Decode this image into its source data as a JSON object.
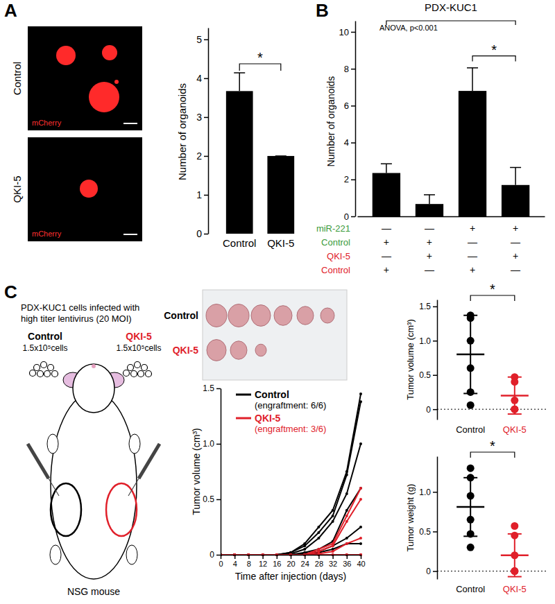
{
  "chart_data": [
    {
      "panel": "A",
      "type": "bar",
      "categories": [
        "Control",
        "QKI-5"
      ],
      "values": [
        3.67,
        2.0
      ],
      "errors": [
        0.47,
        0
      ],
      "color": "#000000",
      "ylabel": "Number of organoids",
      "ylim": [
        0,
        5.3
      ],
      "yticks": [
        0,
        1,
        2,
        3,
        4,
        5
      ],
      "significance": "*",
      "images": [
        {
          "label": "Control",
          "stain": "mCherry"
        },
        {
          "label": "QKI-5",
          "stain": "mCherry"
        }
      ]
    },
    {
      "panel": "B",
      "type": "bar",
      "title": "PDX-KUC1",
      "annotation": "ANOVA, p<0.001",
      "categories": [
        null,
        null,
        null,
        null
      ],
      "values": [
        2.35,
        0.67,
        6.8,
        1.7
      ],
      "errors": [
        0.5,
        0.5,
        1.25,
        0.95
      ],
      "color": "#000000",
      "ylabel": "Number of organoids",
      "ylim": [
        0,
        10.6
      ],
      "yticks": [
        0,
        2,
        4,
        6,
        8,
        10
      ],
      "significance": "*",
      "conditions": [
        {
          "label": "miR-221",
          "color": "#3a9a3a",
          "values": [
            "—",
            "—",
            "+",
            "+"
          ]
        },
        {
          "label": "Control",
          "color": "#3a9a3a",
          "values": [
            "+",
            "+",
            "—",
            "—"
          ]
        },
        {
          "label": "QKI-5",
          "color": "#e0202a",
          "values": [
            "—",
            "+",
            "—",
            "+"
          ]
        },
        {
          "label": "Control",
          "color": "#e0202a",
          "values": [
            "+",
            "—",
            "+",
            "—"
          ]
        }
      ]
    },
    {
      "panel": "C",
      "type": "line",
      "xlabel": "Time after injection (days)",
      "ylabel": "Tumor volume (cm³)",
      "x": [
        0,
        4,
        8,
        12,
        16,
        20,
        24,
        28,
        32,
        36,
        40
      ],
      "xlim": [
        0,
        40
      ],
      "xticks": [
        0,
        4,
        8,
        12,
        16,
        20,
        24,
        28,
        32,
        36,
        40
      ],
      "ylim": [
        0,
        1.5
      ],
      "yticks": [
        0,
        0.5,
        {
          "value": 1,
          "label": "1.0"
        },
        1.5
      ],
      "legend": "top-left",
      "series": [
        {
          "name": "Control",
          "note": "(engraftment: 6/6)",
          "color": "#000000",
          "values": [
            [
              0,
              0,
              0,
              0,
              0,
              0.02,
              0.1,
              0.25,
              0.4,
              0.75,
              1.45
            ],
            [
              0,
              0,
              0,
              0,
              0,
              0.02,
              0.08,
              0.2,
              0.35,
              0.72,
              1.38
            ],
            [
              0,
              0,
              0,
              0,
              0,
              0.01,
              0.05,
              0.15,
              0.3,
              0.55,
              1.0
            ],
            [
              0,
              0,
              0,
              0,
              0,
              0,
              0.02,
              0.05,
              0.12,
              0.4,
              0.6
            ],
            [
              0,
              0,
              0,
              0,
              0,
              0,
              0.01,
              0.03,
              0.08,
              0.15,
              0.25
            ],
            [
              0,
              0,
              0,
              0,
              0,
              0,
              0,
              0.02,
              0.05,
              0.1,
              0.1
            ]
          ]
        },
        {
          "name": "QKI-5",
          "note": "(engraftment: 3/6)",
          "color": "#e0202a",
          "values": [
            [
              0,
              0,
              0,
              0,
              0,
              0,
              0,
              0.05,
              0.1,
              0.35,
              0.6
            ],
            [
              0,
              0,
              0,
              0,
              0,
              0,
              0,
              0.03,
              0.08,
              0.3,
              0.5
            ],
            [
              0,
              0,
              0,
              0,
              0,
              0,
              0,
              0.01,
              0.03,
              0.1,
              0.15
            ],
            [
              0,
              0,
              0,
              0,
              0,
              0,
              0,
              0,
              0,
              0,
              0
            ],
            [
              0,
              0,
              0,
              0,
              0,
              0,
              0,
              0,
              0,
              0,
              0
            ],
            [
              0,
              0,
              0,
              0,
              0,
              0,
              0,
              0,
              0,
              0,
              0
            ]
          ]
        }
      ]
    },
    {
      "type": "scatter",
      "categories": [
        "Control",
        "QKI-5"
      ],
      "colors": [
        "#000000",
        "#e0202a"
      ],
      "values": [
        [
          1.37,
          1.33,
          1.0,
          0.6,
          0.25,
          0.06
        ],
        [
          0.47,
          0.4,
          0.13,
          0,
          0,
          0
        ]
      ],
      "mean": [
        0.8,
        0.2
      ],
      "errors": [
        0.57,
        0.27
      ],
      "ylabel": "Tumor volume (cm³)",
      "ylim": [
        -0.15,
        1.6
      ],
      "yticks": [
        0,
        0.5,
        {
          "value": 1,
          "label": "1.0"
        },
        1.5
      ],
      "significance": "*"
    },
    {
      "type": "scatter",
      "categories": [
        "Control",
        "QKI-5"
      ],
      "colors": [
        "#000000",
        "#e0202a"
      ],
      "values": [
        [
          1.3,
          1.18,
          0.95,
          0.65,
          0.47,
          0.3
        ],
        [
          0.57,
          0.45,
          0.2,
          0,
          0,
          0
        ]
      ],
      "mean": [
        0.81,
        0.2
      ],
      "errors": [
        0.37,
        0.27
      ],
      "ylabel": "Tumor weight (g)",
      "ylim": [
        -0.1,
        1.45
      ],
      "yticks": [
        0,
        0.5,
        {
          "value": 1,
          "label": "1.0"
        }
      ],
      "significance": "*"
    }
  ],
  "schematic": {
    "caption": [
      "PDX-KUC1 cells infected with",
      "high titer lentivirus (20 MOI)"
    ],
    "groups": [
      {
        "label": "Control",
        "cells": "1.5x10⁵cells",
        "color": "#000000"
      },
      {
        "label": "QKI-5",
        "cells": "1.5x10⁵cells",
        "color": "#e0202a"
      }
    ],
    "mouse": "NSG mouse"
  },
  "tumor_photo": {
    "rows": [
      {
        "label": "Control",
        "color": "#000000"
      },
      {
        "label": "QKI-5",
        "color": "#e0202a"
      }
    ]
  }
}
